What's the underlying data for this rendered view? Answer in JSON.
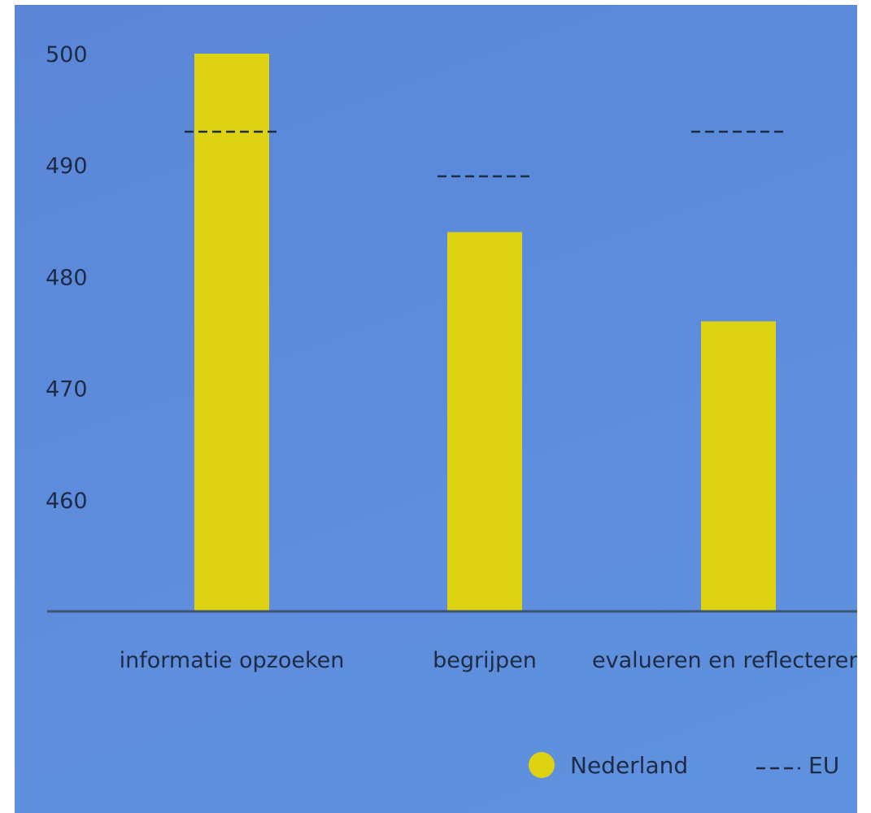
{
  "chart_data": {
    "type": "bar",
    "categories": [
      "informatie opzoeken",
      "begrijpen",
      "evalueren en reflecteren"
    ],
    "series": [
      {
        "name": "Nederland",
        "kind": "bar",
        "color": "#ddd312",
        "values": [
          500,
          484,
          476
        ]
      },
      {
        "name": "EU",
        "kind": "dashed-line",
        "color": "#1f2a44",
        "values": [
          493,
          489,
          493
        ]
      }
    ],
    "yticks": [
      460,
      470,
      480,
      490,
      500
    ],
    "ylim": [
      450,
      503
    ],
    "title": "",
    "xlabel": "",
    "ylabel": "",
    "grid": false,
    "legend_position": "bottom-right"
  }
}
